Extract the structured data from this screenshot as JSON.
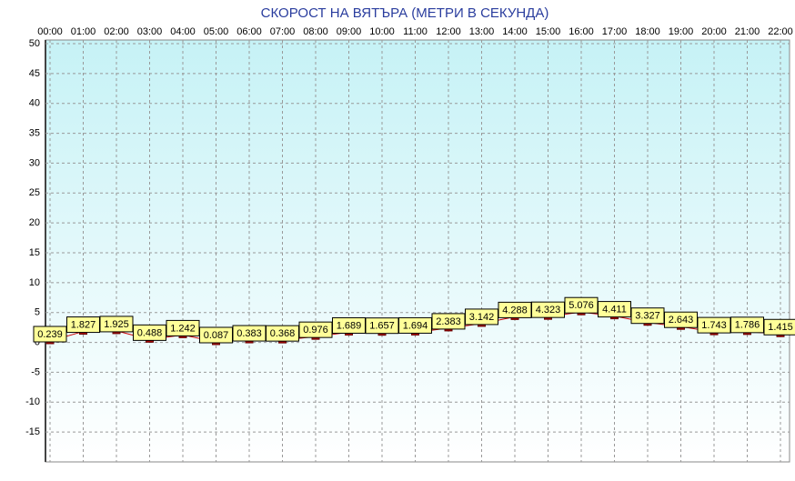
{
  "chart_data": {
    "type": "line",
    "title": "СКОРОСТ НА ВЯТЪРА (МЕТРИ В СЕКУНДА)",
    "categories": [
      "00:00",
      "01:00",
      "02:00",
      "03:00",
      "04:00",
      "05:00",
      "06:00",
      "07:00",
      "08:00",
      "09:00",
      "10:00",
      "11:00",
      "12:00",
      "13:00",
      "14:00",
      "15:00",
      "16:00",
      "17:00",
      "18:00",
      "19:00",
      "20:00",
      "21:00",
      "22:00"
    ],
    "values": [
      0.239,
      1.827,
      1.925,
      0.488,
      1.242,
      0.087,
      0.383,
      0.368,
      0.976,
      1.689,
      1.657,
      1.694,
      2.383,
      3.142,
      4.288,
      4.323,
      5.076,
      4.411,
      3.327,
      2.643,
      1.743,
      1.786,
      1.415
    ],
    "color": "#cc0000",
    "ylim": [
      -20,
      50
    ],
    "yticks": [
      -15,
      -10,
      -5,
      0,
      5,
      10,
      15,
      20,
      25,
      30,
      35,
      40,
      45,
      50
    ],
    "grid": true
  }
}
